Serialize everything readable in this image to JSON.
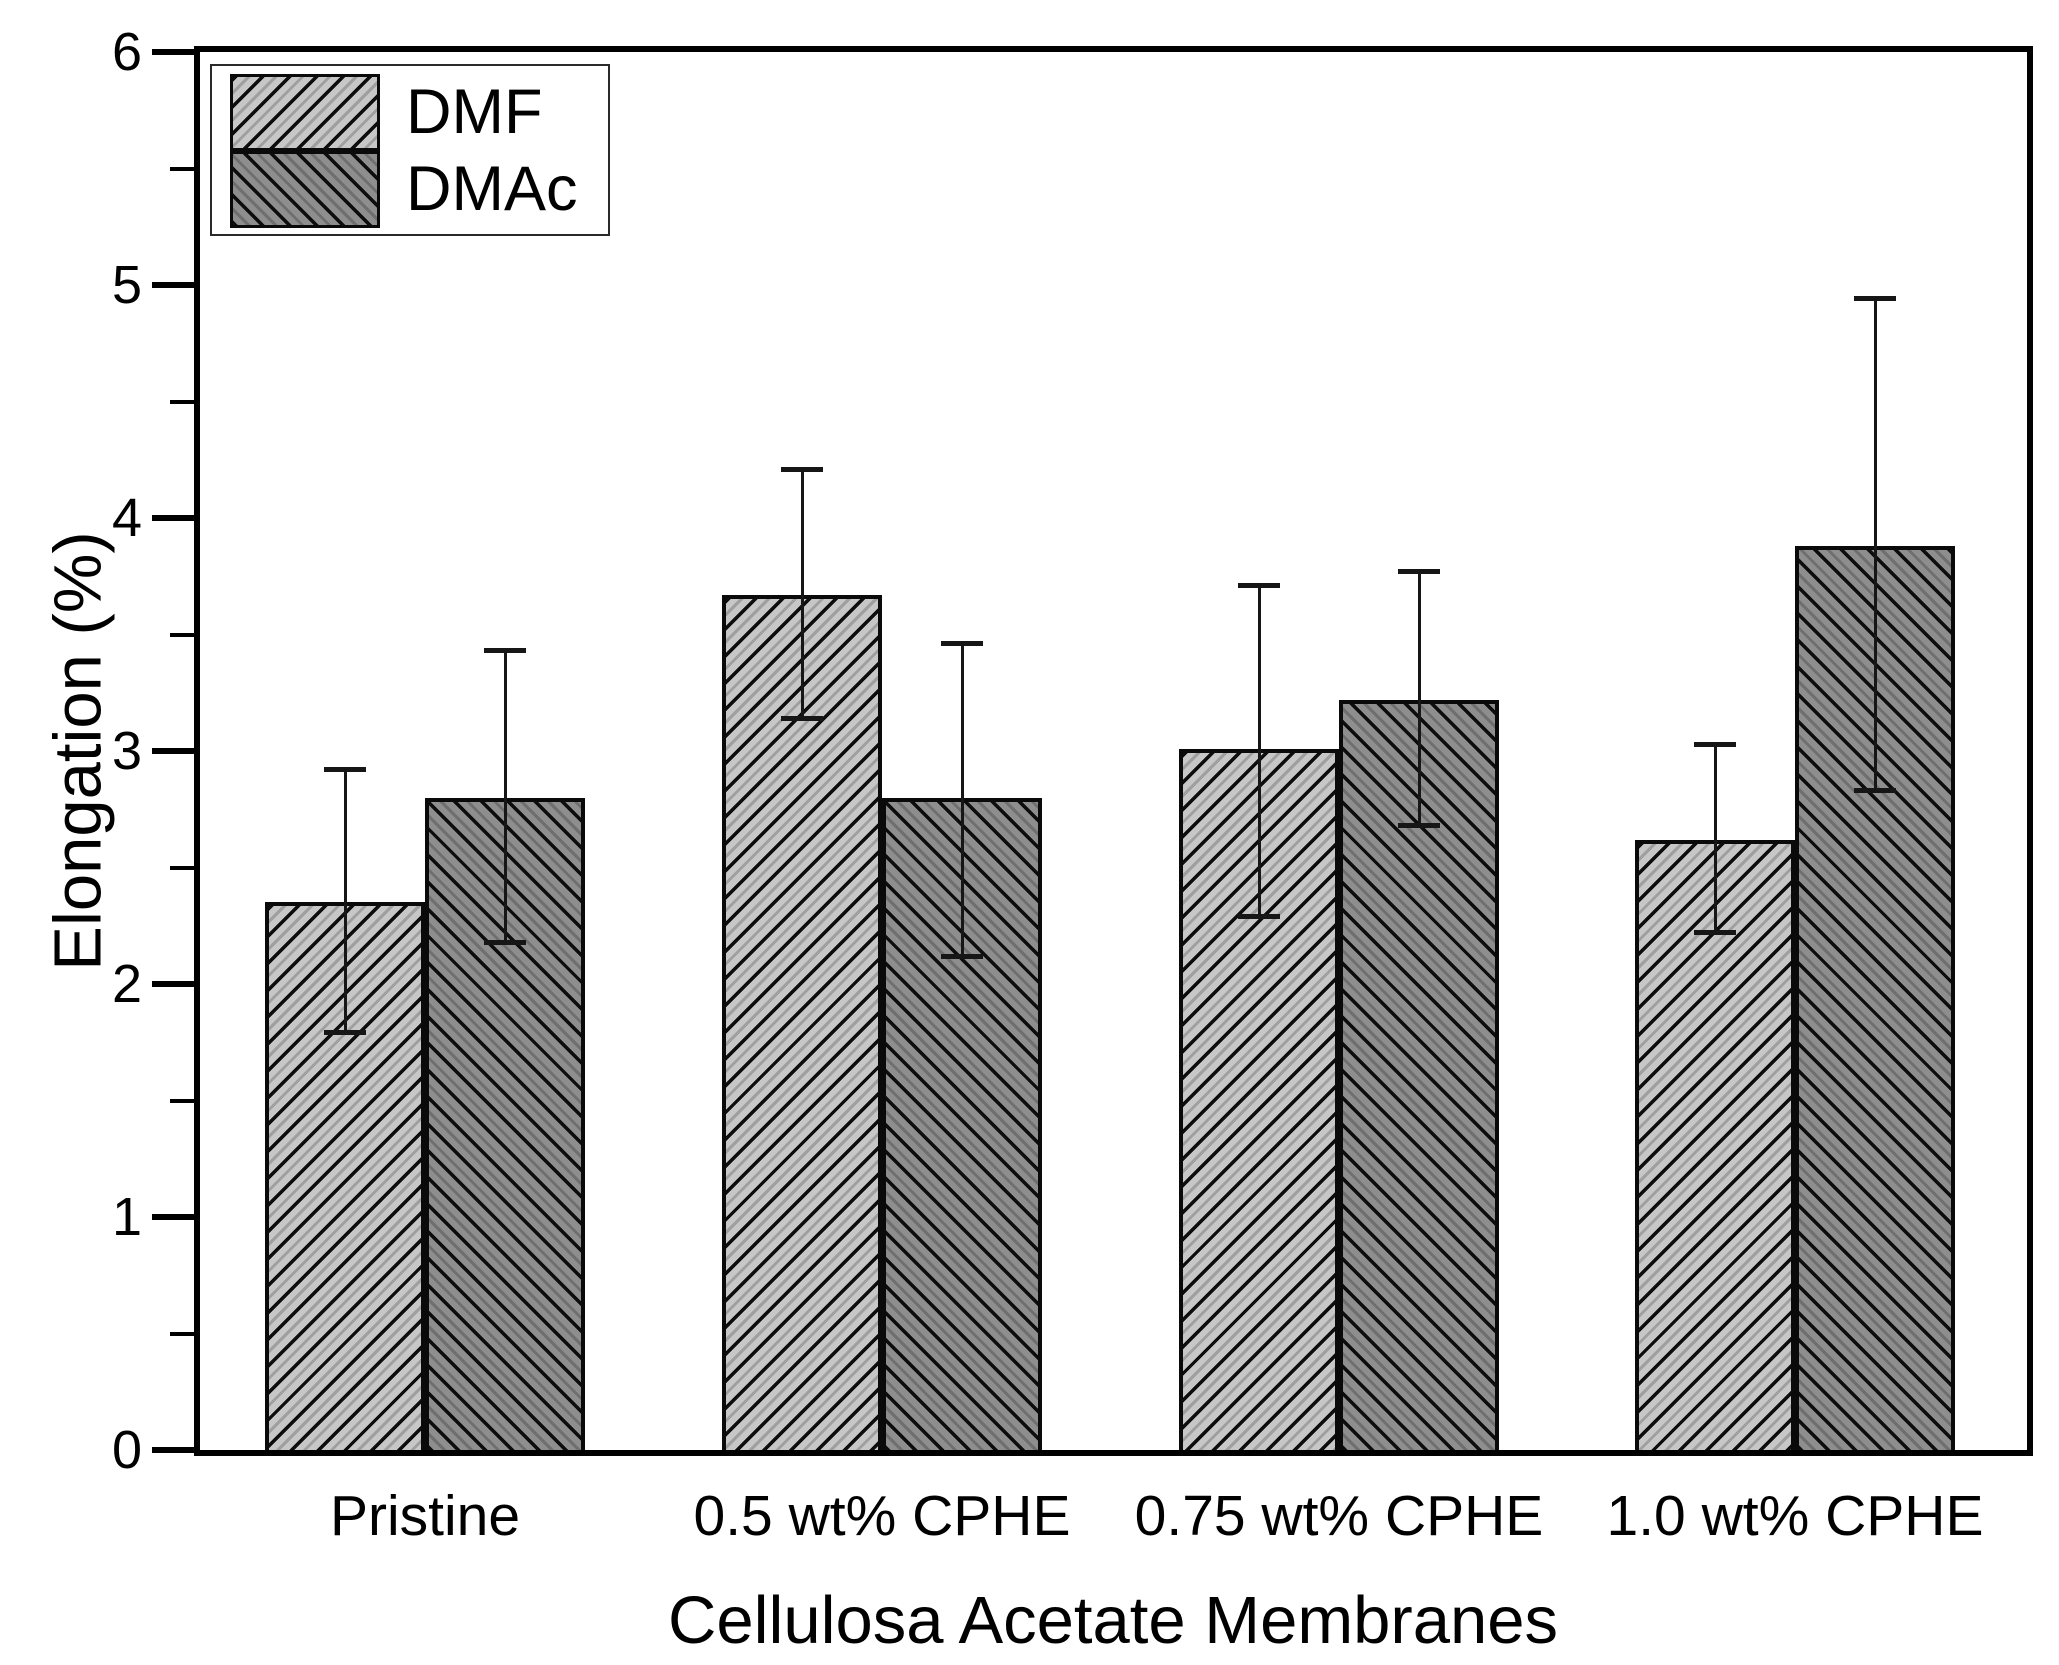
{
  "figure": {
    "background": "#ffffff",
    "text_color": "#000000",
    "axis_color": "#000000"
  },
  "chart_data": {
    "type": "bar",
    "title": "",
    "xlabel": "Cellulosa Acetate Membranes",
    "ylabel": "Elongation (%)",
    "categories": [
      "Pristine",
      "0.5 wt% CPHE",
      "0.75 wt% CPHE",
      "1.0 wt% CPHE"
    ],
    "series": [
      {
        "name": "DMF",
        "values": [
          2.35,
          3.67,
          3.01,
          2.62
        ],
        "error_low": [
          1.79,
          3.14,
          2.29,
          2.22
        ],
        "error_high": [
          2.92,
          4.21,
          3.71,
          3.03
        ],
        "fill": "#c7c7c7",
        "hatch": "/",
        "hatch_color": "#0d0d0d",
        "hatch_alt_color": "#9f9f9f"
      },
      {
        "name": "DMAc",
        "values": [
          2.8,
          2.8,
          3.22,
          3.88
        ],
        "error_low": [
          2.18,
          2.12,
          2.68,
          2.83
        ],
        "error_high": [
          3.43,
          3.46,
          3.77,
          4.94
        ],
        "fill": "#8e8e8e",
        "hatch": "\\",
        "hatch_color": "#0d0d0d",
        "hatch_alt_color": "#6f6f6f"
      }
    ],
    "ylim": [
      0,
      6
    ],
    "y_tick_labels": [
      "0",
      "1",
      "2",
      "3",
      "4",
      "5",
      "6"
    ],
    "y_major_step": 1,
    "y_minor_step": 0.5,
    "grid": false,
    "error_bar_color": "#161616",
    "legend_position": "top-left"
  }
}
